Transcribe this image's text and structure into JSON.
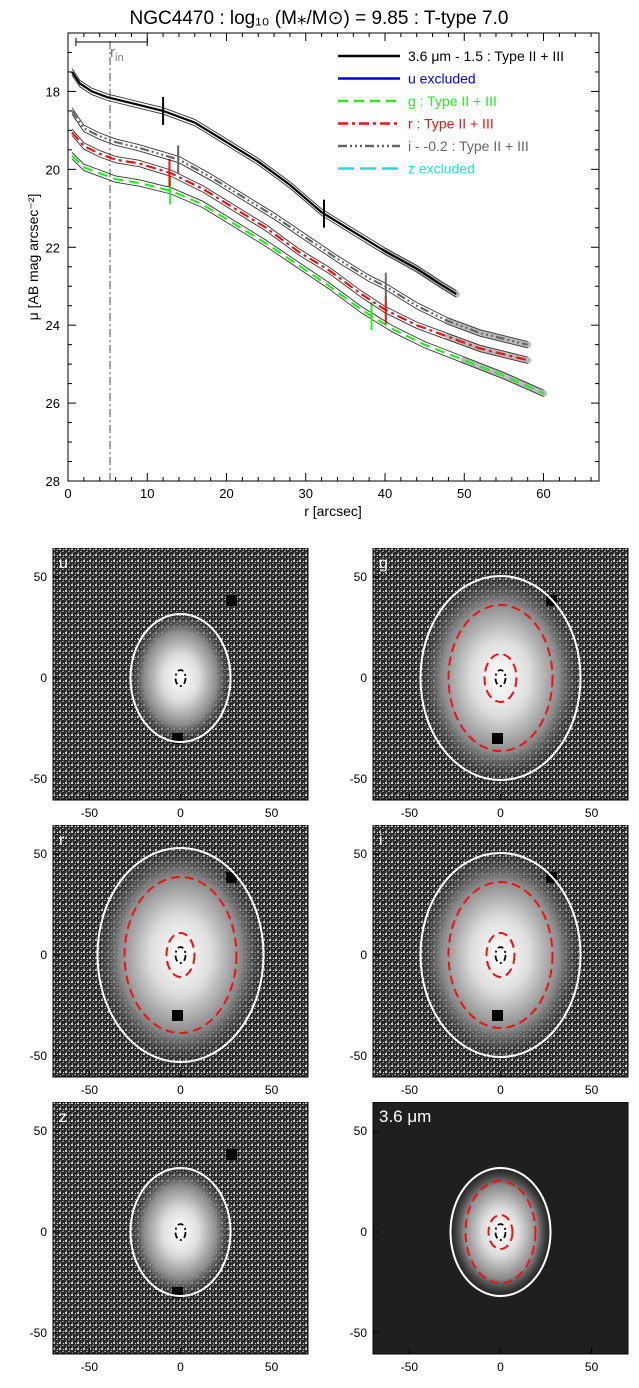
{
  "figure": {
    "title": "NGC4470 : log₁₀ (M⁎/M⊙) = 9.85 : T-type 7.0",
    "rin_label": "r",
    "rin_sub": "in"
  },
  "chart_data": [
    {
      "type": "line",
      "xlabel": "r [arcsec]",
      "ylabel": "μ [AB mag arcsec⁻²]",
      "xlim": [
        0,
        67
      ],
      "ylim": [
        28,
        16.5
      ],
      "y_inverted": true,
      "x_ticks": [
        0,
        10,
        20,
        30,
        40,
        50,
        60
      ],
      "y_ticks": [
        18,
        20,
        22,
        24,
        26,
        28
      ],
      "rin_line_x": 5.3,
      "rin_bar": [
        1,
        10
      ],
      "legend_position": "top-right",
      "legend": [
        {
          "label": "3.6 μm - 1.5 : Type II + III",
          "color": "#000000",
          "dash": ""
        },
        {
          "label": "u excluded",
          "color": "#0000e0",
          "dash": ""
        },
        {
          "label": "g : Type II + III",
          "color": "#22ee22",
          "dash": "10,6"
        },
        {
          "label": "r : Type II + III",
          "color": "#ee1111",
          "dash": "10,4,3,4"
        },
        {
          "label": "i - -0.2 : Type II + III",
          "color": "#666666",
          "dash": "9,3,2,3,2,3,2,3"
        },
        {
          "label": "z excluded",
          "color": "#22dddd",
          "dash": "16,6"
        }
      ],
      "series": [
        {
          "name": "3.6 μm - 1.5",
          "color": "#000000",
          "dash": "",
          "x": [
            0.5,
            1.5,
            3,
            5,
            8,
            12,
            16,
            20,
            24,
            28,
            32,
            36,
            40,
            44,
            47,
            49
          ],
          "y": [
            17.5,
            17.8,
            18.0,
            18.15,
            18.3,
            18.5,
            18.8,
            19.3,
            19.8,
            20.4,
            21.1,
            21.6,
            22.1,
            22.55,
            22.95,
            23.2
          ],
          "breaks": [
            12.0,
            32.3
          ]
        },
        {
          "name": "g",
          "color": "#22ee22",
          "dash": "10,6",
          "x": [
            0.5,
            2,
            4,
            6,
            9,
            13,
            17,
            21,
            25,
            29,
            33,
            37,
            41,
            45,
            50,
            55,
            60
          ],
          "y": [
            19.65,
            19.95,
            20.1,
            20.25,
            20.35,
            20.55,
            20.9,
            21.4,
            21.9,
            22.45,
            23.0,
            23.6,
            24.1,
            24.5,
            24.9,
            25.3,
            25.75
          ],
          "breaks": [
            12.9,
            38.3
          ]
        },
        {
          "name": "r",
          "color": "#ee1111",
          "dash": "10,4,3,4",
          "x": [
            0.5,
            2,
            4,
            6,
            9,
            13,
            17,
            21,
            25,
            29,
            33,
            37,
            40,
            44,
            48,
            52,
            58
          ],
          "y": [
            19.05,
            19.4,
            19.6,
            19.75,
            19.85,
            20.1,
            20.5,
            21.0,
            21.5,
            22.1,
            22.6,
            23.2,
            23.6,
            24.0,
            24.3,
            24.6,
            24.9
          ],
          "breaks": [
            12.8,
            40.1
          ]
        },
        {
          "name": "i - -0.2",
          "color": "#666666",
          "dash": "9,3,2,3,2,3,2,3",
          "x": [
            0.5,
            2,
            4,
            6,
            9,
            14,
            18,
            22,
            26,
            30,
            34,
            38,
            40,
            44,
            48,
            52,
            58
          ],
          "y": [
            18.5,
            18.95,
            19.15,
            19.3,
            19.45,
            19.75,
            20.2,
            20.7,
            21.2,
            21.75,
            22.3,
            22.8,
            23.0,
            23.5,
            23.9,
            24.2,
            24.5
          ],
          "breaks": [
            13.9,
            40.1
          ]
        }
      ]
    }
  ],
  "panels": [
    {
      "label": "u",
      "x_ticks": [
        -50,
        0,
        50
      ],
      "y_ticks": [
        50,
        0,
        -50
      ]
    },
    {
      "label": "g",
      "x_ticks": [
        -50,
        0,
        50
      ],
      "y_ticks": [
        50,
        0,
        -50
      ]
    },
    {
      "label": "r",
      "x_ticks": [
        -50,
        0,
        50
      ],
      "y_ticks": [
        50,
        0,
        -50
      ]
    },
    {
      "label": "i",
      "x_ticks": [
        -50,
        0,
        50
      ],
      "y_ticks": [
        50,
        0,
        -50
      ]
    },
    {
      "label": "z",
      "x_ticks": [
        -50,
        0,
        50
      ],
      "y_ticks": [
        50,
        0,
        -50
      ]
    },
    {
      "label": "3.6 μm",
      "x_ticks": [
        -50,
        0,
        50
      ],
      "y_ticks": [
        50,
        0,
        -50
      ]
    }
  ],
  "colors": {
    "ellipse_outer": "#ffffff",
    "ellipse_break": "#ee1111",
    "ellipse_inner": "#000000"
  }
}
